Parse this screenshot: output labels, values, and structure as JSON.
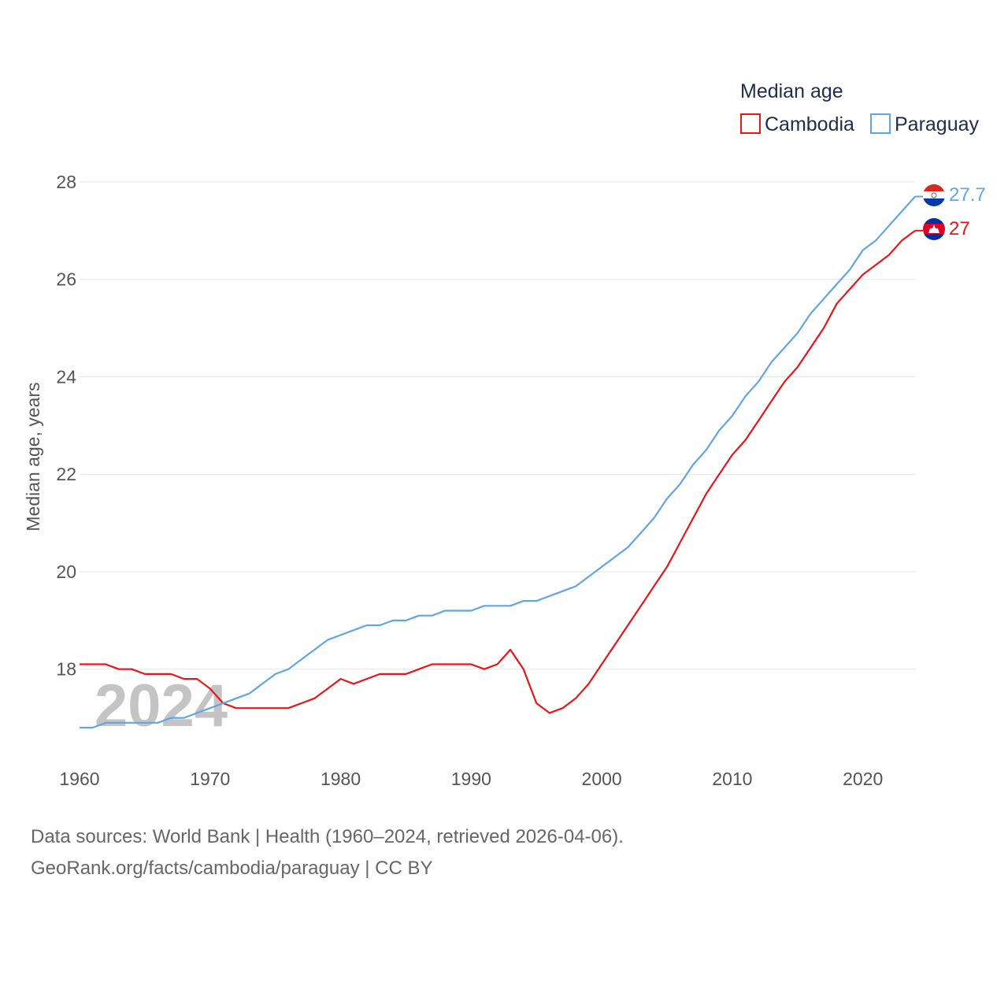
{
  "chart_data": {
    "type": "line",
    "title": "Median age",
    "ylabel": "Median age, years",
    "xlabel": "",
    "xlim": [
      1960,
      2024
    ],
    "ylim": [
      16.25,
      28
    ],
    "yticks": [
      18,
      20,
      22,
      24,
      26,
      28
    ],
    "xticks": [
      1960,
      1970,
      1980,
      1990,
      2000,
      2010,
      2020
    ],
    "year_watermark": "2024",
    "legend_position": "top-right",
    "x": [
      1960,
      1961,
      1962,
      1963,
      1964,
      1965,
      1966,
      1967,
      1968,
      1969,
      1970,
      1971,
      1972,
      1973,
      1974,
      1975,
      1976,
      1977,
      1978,
      1979,
      1980,
      1981,
      1982,
      1983,
      1984,
      1985,
      1986,
      1987,
      1988,
      1989,
      1990,
      1991,
      1992,
      1993,
      1994,
      1995,
      1996,
      1997,
      1998,
      1999,
      2000,
      2001,
      2002,
      2003,
      2004,
      2005,
      2006,
      2007,
      2008,
      2009,
      2010,
      2011,
      2012,
      2013,
      2014,
      2015,
      2016,
      2017,
      2018,
      2019,
      2020,
      2021,
      2022,
      2023,
      2024
    ],
    "series": [
      {
        "name": "Cambodia",
        "color": "#e8161b",
        "end_label": "27",
        "values": [
          18.1,
          18.1,
          18.1,
          18.0,
          18.0,
          17.9,
          17.9,
          17.9,
          17.8,
          17.8,
          17.6,
          17.3,
          17.2,
          17.2,
          17.2,
          17.2,
          17.2,
          17.3,
          17.4,
          17.6,
          17.8,
          17.7,
          17.8,
          17.9,
          17.9,
          17.9,
          18.0,
          18.1,
          18.1,
          18.1,
          18.1,
          18.0,
          18.1,
          18.4,
          18.0,
          17.3,
          17.1,
          17.2,
          17.4,
          17.7,
          18.1,
          18.5,
          18.9,
          19.3,
          19.7,
          20.1,
          20.6,
          21.1,
          21.6,
          22.0,
          22.4,
          22.7,
          23.1,
          23.5,
          23.9,
          24.2,
          24.6,
          25.0,
          25.5,
          25.8,
          26.1,
          26.3,
          26.5,
          26.8,
          27.0
        ]
      },
      {
        "name": "Paraguay",
        "color": "#62a5e4",
        "end_label": "27.7",
        "values": [
          16.8,
          16.8,
          16.9,
          16.9,
          16.9,
          16.9,
          16.9,
          17.0,
          17.0,
          17.1,
          17.2,
          17.3,
          17.4,
          17.5,
          17.7,
          17.9,
          18.0,
          18.2,
          18.4,
          18.6,
          18.7,
          18.8,
          18.9,
          18.9,
          19.0,
          19.0,
          19.1,
          19.1,
          19.2,
          19.2,
          19.2,
          19.3,
          19.3,
          19.3,
          19.4,
          19.4,
          19.5,
          19.6,
          19.7,
          19.9,
          20.1,
          20.3,
          20.5,
          20.8,
          21.1,
          21.5,
          21.8,
          22.2,
          22.5,
          22.9,
          23.2,
          23.6,
          23.9,
          24.3,
          24.6,
          24.9,
          25.3,
          25.6,
          25.9,
          26.2,
          26.6,
          26.8,
          27.1,
          27.4,
          27.7
        ]
      }
    ]
  },
  "source": {
    "line1": "Data sources: World Bank | Health (1960–2024, retrieved 2026-04-06).",
    "line2": "GeoRank.org/facts/cambodia/paraguay | CC BY"
  }
}
